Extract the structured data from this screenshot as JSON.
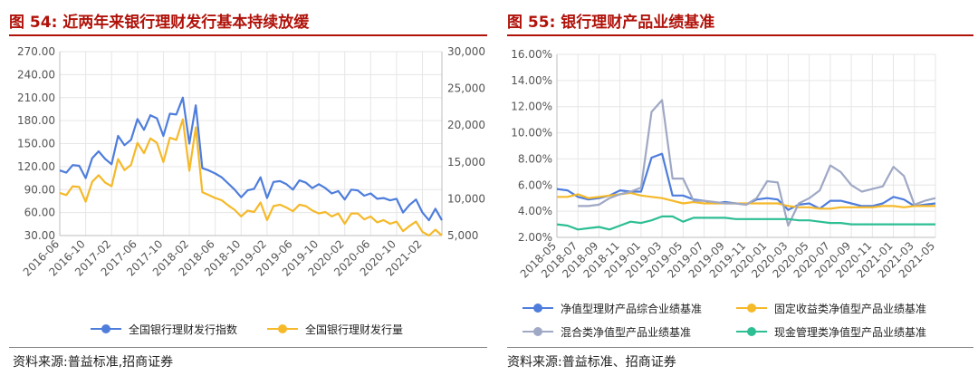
{
  "colors": {
    "title_red": "#b0120a",
    "blue": "#4e7ddc",
    "gold": "#f5b92a",
    "gray": "#9fa8c4",
    "green": "#2dbe94",
    "grid": "#e6e6e6",
    "axis_text": "#555555"
  },
  "left": {
    "title": "图 54:  近两年来银行理财发行基本持续放缓",
    "source": "资料来源:普益标准,招商证券",
    "chart_data": {
      "type": "line",
      "title": "",
      "x": [
        "2016-06",
        "2016-07",
        "2016-08",
        "2016-09",
        "2016-10",
        "2016-11",
        "2016-12",
        "2017-01",
        "2017-02",
        "2017-03",
        "2017-04",
        "2017-05",
        "2017-06",
        "2017-07",
        "2017-08",
        "2017-09",
        "2017-10",
        "2017-11",
        "2017-12",
        "2018-01",
        "2018-02",
        "2018-03",
        "2018-04",
        "2018-05",
        "2018-06",
        "2018-07",
        "2018-08",
        "2018-09",
        "2018-10",
        "2018-11",
        "2018-12",
        "2019-01",
        "2019-02",
        "2019-03",
        "2019-04",
        "2019-05",
        "2019-06",
        "2019-07",
        "2019-08",
        "2019-09",
        "2019-10",
        "2019-11",
        "2019-12",
        "2020-01",
        "2020-02",
        "2020-03",
        "2020-04",
        "2020-05",
        "2020-06",
        "2020-07",
        "2020-08",
        "2020-09",
        "2020-10",
        "2020-11",
        "2020-12",
        "2021-01",
        "2021-02",
        "2021-03",
        "2021-04",
        "2021-05"
      ],
      "xticks": [
        "2016-06",
        "2016-10",
        "2017-02",
        "2017-06",
        "2017-10",
        "2018-02",
        "2018-06",
        "2018-10",
        "2019-02",
        "2019-06",
        "2019-10",
        "2020-02",
        "2020-06",
        "2020-10",
        "2021-02"
      ],
      "yticks_left": [
        "270.00",
        "240.00",
        "210.00",
        "180.00",
        "150.00",
        "120.00",
        "90.00",
        "60.00",
        "30.00"
      ],
      "yticks_right": [
        "30,000",
        "25,000",
        "20,000",
        "15,000",
        "10,000",
        "5,000"
      ],
      "ylim_left": [
        30,
        270
      ],
      "ylim_right": [
        5000,
        30000
      ],
      "grid": true,
      "legend_position": "bottom",
      "series": [
        {
          "name": "全国银行理财发行指数",
          "axis": "left",
          "color": "#4e7ddc",
          "values": [
            115,
            112,
            122,
            121,
            105,
            131,
            140,
            130,
            123,
            160,
            148,
            155,
            182,
            168,
            187,
            183,
            160,
            189,
            188,
            210,
            150,
            200,
            118,
            115,
            111,
            106,
            98,
            90,
            80,
            89,
            91,
            106,
            79,
            100,
            101,
            97,
            90,
            102,
            99,
            92,
            97,
            92,
            85,
            88,
            77,
            90,
            89,
            82,
            85,
            78,
            79,
            76,
            78,
            60,
            70,
            77,
            60,
            50,
            65,
            50
          ]
        },
        {
          "name": "全国银行理财发行量",
          "axis": "right",
          "color": "#f5b92a",
          "values": [
            10800,
            10500,
            11700,
            11600,
            9600,
            12300,
            13200,
            12200,
            11700,
            15400,
            13900,
            14600,
            17600,
            16200,
            18200,
            17600,
            15000,
            18300,
            18000,
            20800,
            13800,
            19700,
            10900,
            10500,
            10100,
            9800,
            9100,
            8500,
            7600,
            8400,
            8200,
            9500,
            7100,
            9000,
            9200,
            8800,
            8300,
            9200,
            9000,
            8400,
            8000,
            8200,
            7600,
            8000,
            6600,
            8000,
            8000,
            7200,
            7600,
            6800,
            7100,
            6600,
            6900,
            5600,
            6300,
            6900,
            5500,
            5000,
            5800,
            5000
          ]
        }
      ]
    }
  },
  "right": {
    "title": "图 55:  银行理财产品业绩基准",
    "source": "资料来源:普益标准、招商证券",
    "chart_data": {
      "type": "line",
      "title": "",
      "x": [
        "2018-05",
        "2018-06",
        "2018-07",
        "2018-08",
        "2018-09",
        "2018-10",
        "2018-11",
        "2018-12",
        "2019-01",
        "2019-02",
        "2019-03",
        "2019-04",
        "2019-05",
        "2019-06",
        "2019-07",
        "2019-08",
        "2019-09",
        "2019-10",
        "2019-11",
        "2019-12",
        "2020-01",
        "2020-02",
        "2020-03",
        "2020-04",
        "2020-05",
        "2020-06",
        "2020-07",
        "2020-08",
        "2020-09",
        "2020-10",
        "2020-11",
        "2020-12",
        "2021-01",
        "2021-02",
        "2021-03",
        "2021-04",
        "2021-05"
      ],
      "xticks": [
        "2018-05",
        "2018-07",
        "2018-09",
        "2018-11",
        "2019-01",
        "2019-03",
        "2019-05",
        "2019-07",
        "2019-09",
        "2019-11",
        "2020-01",
        "2020-03",
        "2020-05",
        "2020-07",
        "2020-09",
        "2020-11",
        "2021-01",
        "2021-03",
        "2021-05"
      ],
      "yticks": [
        "16.00%",
        "14.00%",
        "12.00%",
        "10.00%",
        "8.00%",
        "6.00%",
        "4.00%",
        "2.00%"
      ],
      "ylim": [
        2,
        16
      ],
      "grid": true,
      "legend_position": "bottom",
      "series": [
        {
          "name": "净值型理财产品综合业绩基准",
          "color": "#4e7ddc",
          "values": [
            5.7,
            5.6,
            5.1,
            4.9,
            5.0,
            5.2,
            5.6,
            5.5,
            5.5,
            8.1,
            8.4,
            5.2,
            5.2,
            4.9,
            4.8,
            4.6,
            4.7,
            4.6,
            4.5,
            4.9,
            5.0,
            4.9,
            4.1,
            4.5,
            4.6,
            4.2,
            4.8,
            4.8,
            4.6,
            4.4,
            4.4,
            4.6,
            5.1,
            4.9,
            4.4,
            4.5,
            4.6
          ]
        },
        {
          "name": "固定收益类净值型产品业绩基准",
          "color": "#f5b92a",
          "values": [
            5.1,
            5.1,
            5.3,
            5.0,
            5.1,
            5.2,
            5.3,
            5.4,
            5.2,
            5.1,
            5.0,
            4.8,
            4.6,
            4.7,
            4.6,
            4.6,
            4.6,
            4.6,
            4.6,
            4.6,
            4.6,
            4.6,
            4.4,
            4.3,
            4.3,
            4.2,
            4.2,
            4.3,
            4.3,
            4.3,
            4.3,
            4.4,
            4.4,
            4.3,
            4.4,
            4.4,
            4.4
          ]
        },
        {
          "name": "混合类净值型产品业绩基准",
          "color": "#9fa8c4",
          "values": [
            null,
            null,
            4.4,
            4.4,
            4.5,
            5.0,
            5.3,
            5.5,
            5.8,
            11.6,
            12.5,
            6.5,
            6.5,
            4.8,
            4.8,
            4.7,
            4.6,
            4.6,
            4.5,
            5.0,
            6.3,
            6.2,
            2.9,
            4.6,
            5.0,
            5.6,
            7.5,
            7.0,
            6.0,
            5.5,
            5.7,
            5.9,
            7.4,
            6.7,
            4.5,
            4.8,
            5.0
          ]
        },
        {
          "name": "现金管理类净值型产品业绩基准",
          "color": "#2dbe94",
          "values": [
            3.0,
            2.9,
            2.6,
            2.7,
            2.8,
            2.6,
            2.9,
            3.2,
            3.1,
            3.3,
            3.6,
            3.6,
            3.2,
            3.5,
            3.5,
            3.5,
            3.5,
            3.4,
            3.4,
            3.4,
            3.4,
            3.4,
            3.4,
            3.3,
            3.3,
            3.2,
            3.1,
            3.1,
            3.0,
            3.0,
            3.0,
            3.0,
            3.0,
            3.0,
            3.0,
            3.0,
            3.0
          ]
        }
      ]
    }
  }
}
